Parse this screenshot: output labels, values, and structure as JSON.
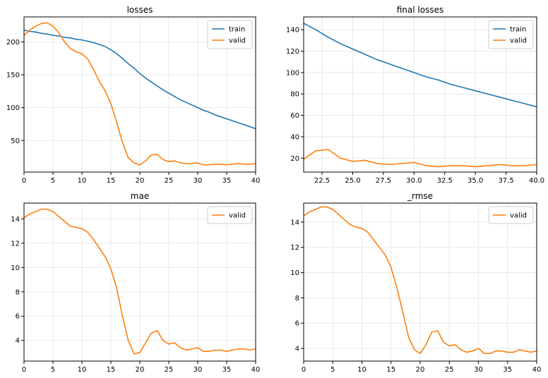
{
  "colors": {
    "train": "#1f77b4",
    "valid": "#ff7f0e",
    "grid": "#e8e8e8",
    "axis": "#000000"
  },
  "chart_data": [
    {
      "id": "losses",
      "type": "line",
      "title": "losses",
      "xlim": [
        0,
        40
      ],
      "ylim": [
        2,
        238
      ],
      "xticks": [
        0,
        5,
        10,
        15,
        20,
        25,
        30,
        35,
        40
      ],
      "yticks": [
        50,
        100,
        150,
        200
      ],
      "grid": true,
      "legend": "top-right",
      "series": [
        {
          "name": "train",
          "color": "#1f77b4",
          "x": [
            0,
            1,
            2,
            3,
            4,
            5,
            6,
            7,
            8,
            9,
            10,
            11,
            12,
            13,
            14,
            15,
            16,
            17,
            18,
            19,
            20,
            21,
            22,
            23,
            24,
            25,
            26,
            27,
            28,
            29,
            30,
            31,
            32,
            33,
            34,
            35,
            36,
            37,
            38,
            39,
            40
          ],
          "y": [
            218,
            216,
            215,
            213,
            212,
            210,
            209,
            207,
            206,
            204,
            203,
            201,
            199,
            196,
            193,
            188,
            182,
            175,
            167,
            160,
            152,
            145,
            139,
            133,
            127,
            122,
            117,
            112,
            108,
            104,
            100,
            96,
            93,
            89,
            86,
            83,
            80,
            77,
            74,
            71,
            68
          ]
        },
        {
          "name": "valid",
          "color": "#ff7f0e",
          "x": [
            0,
            1,
            2,
            3,
            4,
            5,
            6,
            7,
            8,
            9,
            10,
            11,
            12,
            13,
            14,
            15,
            16,
            17,
            18,
            19,
            20,
            21,
            22,
            23,
            24,
            25,
            26,
            27,
            28,
            29,
            30,
            31,
            32,
            33,
            34,
            35,
            36,
            37,
            38,
            39,
            40
          ],
          "y": [
            210,
            218,
            224,
            228,
            229,
            224,
            214,
            200,
            190,
            185,
            182,
            174,
            158,
            140,
            126,
            106,
            78,
            47,
            24,
            16,
            13,
            19,
            28,
            29,
            21,
            18,
            19,
            16,
            15,
            15,
            16,
            13,
            13,
            14,
            14,
            13,
            14,
            15,
            14,
            14,
            15
          ]
        }
      ]
    },
    {
      "id": "final_losses",
      "type": "line",
      "title": "final losses",
      "xlim": [
        21,
        40
      ],
      "ylim": [
        7,
        152
      ],
      "xticks": [
        22.5,
        25.0,
        27.5,
        30.0,
        32.5,
        35.0,
        37.5,
        40.0
      ],
      "xtick_labels": [
        "22.5",
        "25.0",
        "27.5",
        "30.0",
        "32.5",
        "35.0",
        "37.5",
        "40.0"
      ],
      "yticks": [
        20,
        40,
        60,
        80,
        100,
        120,
        140
      ],
      "grid": true,
      "legend": "top-right",
      "series": [
        {
          "name": "train",
          "color": "#1f77b4",
          "x": [
            21,
            22,
            23,
            24,
            25,
            26,
            27,
            28,
            29,
            30,
            31,
            32,
            33,
            34,
            35,
            36,
            37,
            38,
            39,
            40
          ],
          "y": [
            146,
            140,
            133,
            127,
            122,
            117,
            112,
            108,
            104,
            100,
            96,
            93,
            89,
            86,
            83,
            80,
            77,
            74,
            71,
            68
          ]
        },
        {
          "name": "valid",
          "color": "#ff7f0e",
          "x": [
            21,
            22,
            23,
            24,
            25,
            26,
            27,
            28,
            29,
            30,
            31,
            32,
            33,
            34,
            35,
            36,
            37,
            38,
            39,
            40
          ],
          "y": [
            19,
            27,
            28,
            20,
            17,
            18,
            15,
            14,
            15,
            16,
            13,
            12,
            13,
            13,
            12,
            13,
            14,
            13,
            13,
            14
          ]
        }
      ]
    },
    {
      "id": "mae",
      "type": "line",
      "title": "mae",
      "xlim": [
        0,
        40
      ],
      "ylim": [
        2.3,
        15.3
      ],
      "xticks": [
        0,
        5,
        10,
        15,
        20,
        25,
        30,
        35,
        40
      ],
      "yticks": [
        4,
        6,
        8,
        10,
        12,
        14
      ],
      "grid": true,
      "legend": "top-right",
      "series": [
        {
          "name": "valid",
          "color": "#ff7f0e",
          "x": [
            0,
            1,
            2,
            3,
            4,
            5,
            6,
            7,
            8,
            9,
            10,
            11,
            12,
            13,
            14,
            15,
            16,
            17,
            18,
            19,
            20,
            21,
            22,
            23,
            24,
            25,
            26,
            27,
            28,
            29,
            30,
            31,
            32,
            33,
            34,
            35,
            36,
            37,
            38,
            39,
            40
          ],
          "y": [
            14.1,
            14.4,
            14.6,
            14.8,
            14.8,
            14.6,
            14.2,
            13.8,
            13.4,
            13.3,
            13.2,
            12.9,
            12.3,
            11.6,
            10.9,
            9.9,
            8.3,
            6.0,
            4.0,
            2.9,
            3.0,
            3.8,
            4.6,
            4.8,
            4.0,
            3.7,
            3.8,
            3.4,
            3.2,
            3.3,
            3.4,
            3.1,
            3.1,
            3.2,
            3.2,
            3.1,
            3.2,
            3.3,
            3.3,
            3.2,
            3.3
          ]
        }
      ]
    },
    {
      "id": "rmse",
      "type": "line",
      "title": "_rmse",
      "xlim": [
        0,
        40
      ],
      "ylim": [
        3.0,
        15.5
      ],
      "xticks": [
        0,
        5,
        10,
        15,
        20,
        25,
        30,
        35,
        40
      ],
      "yticks": [
        4,
        6,
        8,
        10,
        12,
        14
      ],
      "grid": true,
      "legend": "top-right",
      "series": [
        {
          "name": "valid",
          "color": "#ff7f0e",
          "x": [
            0,
            1,
            2,
            3,
            4,
            5,
            6,
            7,
            8,
            9,
            10,
            11,
            12,
            13,
            14,
            15,
            16,
            17,
            18,
            19,
            20,
            21,
            22,
            23,
            24,
            25,
            26,
            27,
            28,
            29,
            30,
            31,
            32,
            33,
            34,
            35,
            36,
            37,
            38,
            39,
            40
          ],
          "y": [
            14.5,
            14.8,
            15.0,
            15.2,
            15.2,
            15.0,
            14.6,
            14.2,
            13.8,
            13.6,
            13.5,
            13.2,
            12.6,
            12.0,
            11.4,
            10.4,
            8.8,
            6.9,
            4.9,
            3.9,
            3.6,
            4.3,
            5.3,
            5.4,
            4.5,
            4.2,
            4.3,
            3.9,
            3.7,
            3.8,
            4.0,
            3.6,
            3.6,
            3.8,
            3.8,
            3.7,
            3.7,
            3.9,
            3.8,
            3.7,
            3.8
          ]
        }
      ]
    }
  ]
}
